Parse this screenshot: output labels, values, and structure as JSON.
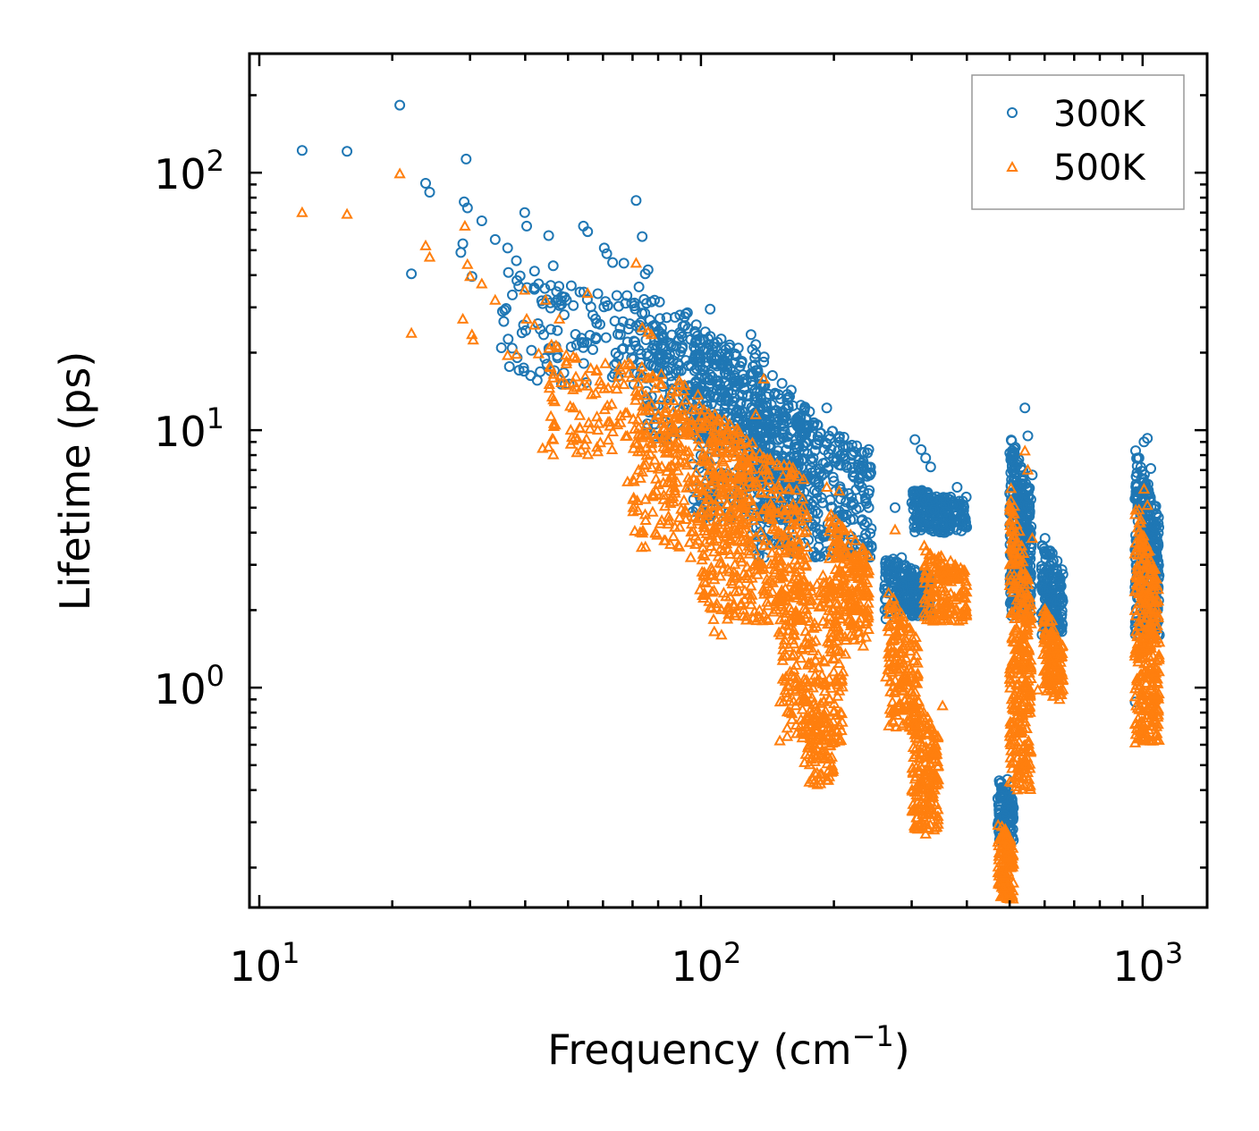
{
  "chart_data": {
    "type": "scatter",
    "title": "",
    "xlabel": "Frequency (cm",
    "xlabel_sup": "−1",
    "xlabel_tail": ")",
    "ylabel": "Lifetime (ps)",
    "xscale": "log",
    "yscale": "log",
    "xlim": [
      9.5,
      1400
    ],
    "ylim": [
      0.14,
      290
    ],
    "x_ticks": [
      {
        "base": "10",
        "exp": "1",
        "value": 10
      },
      {
        "base": "10",
        "exp": "2",
        "value": 100
      },
      {
        "base": "10",
        "exp": "3",
        "value": 1000
      }
    ],
    "y_ticks": [
      {
        "base": "10",
        "exp": "0",
        "value": 1
      },
      {
        "base": "10",
        "exp": "1",
        "value": 10
      },
      {
        "base": "10",
        "exp": "2",
        "value": 100
      }
    ],
    "legend_position": "top-right",
    "series": [
      {
        "name": "300K",
        "marker": "circle",
        "color": "#1f77b4",
        "points": [
          [
            12.5,
            122
          ],
          [
            15.8,
            121
          ],
          [
            20.8,
            183
          ],
          [
            22.1,
            40.5
          ],
          [
            23.8,
            91
          ],
          [
            24.3,
            84
          ],
          [
            29.4,
            113
          ],
          [
            29.1,
            77
          ],
          [
            29.6,
            73
          ],
          [
            28.9,
            53
          ],
          [
            28.6,
            49
          ],
          [
            30.3,
            39.5
          ],
          [
            31.9,
            65
          ],
          [
            34.2,
            55
          ],
          [
            36.5,
            51
          ],
          [
            38.2,
            45.5
          ],
          [
            37.4,
            33.5
          ],
          [
            39.9,
            70
          ],
          [
            40.3,
            62
          ],
          [
            42.0,
            41.5
          ],
          [
            42.9,
            37
          ],
          [
            43.8,
            31
          ],
          [
            45.2,
            57
          ],
          [
            45.7,
            36.5
          ],
          [
            46.3,
            43.5
          ],
          [
            47.1,
            34.5
          ],
          [
            47.8,
            30.5
          ],
          [
            49.6,
            32
          ],
          [
            51.4,
            30.5
          ],
          [
            54.2,
            62
          ],
          [
            55.4,
            59
          ],
          [
            56.9,
            28
          ],
          [
            58.1,
            26
          ],
          [
            60.4,
            51
          ],
          [
            61.2,
            48.5
          ],
          [
            63.1,
            44.8
          ],
          [
            65.7,
            23.5
          ],
          [
            66.9,
            44.5
          ],
          [
            68.2,
            22
          ],
          [
            71.3,
            78
          ],
          [
            72.4,
            36
          ],
          [
            73.6,
            56.5
          ],
          [
            74.8,
            40.5
          ],
          [
            75.9,
            42
          ],
          [
            77.2,
            31.5
          ],
          [
            78.5,
            32
          ],
          [
            80.1,
            24.3
          ],
          [
            82.5,
            21.2
          ],
          [
            85.1,
            21.8
          ],
          [
            87.3,
            19.7
          ],
          [
            89.6,
            28
          ],
          [
            92.4,
            28.3
          ],
          [
            94.8,
            22.5
          ],
          [
            97.1,
            19.6
          ],
          [
            99.5,
            22.4
          ],
          [
            101.8,
            20.5
          ],
          [
            104.9,
            29.5
          ],
          [
            107.2,
            21.7
          ],
          [
            111.3,
            17.8
          ],
          [
            115.6,
            16.5
          ],
          [
            119.3,
            18.2
          ],
          [
            124.5,
            15.3
          ],
          [
            129.8,
            23.5
          ],
          [
            133.1,
            21.5
          ],
          [
            138.7,
            18.4
          ],
          [
            145.2,
            16.3
          ],
          [
            152.6,
            15.2
          ],
          [
            160.1,
            14.3
          ],
          [
            168.4,
            12.5
          ],
          [
            176.2,
            11.8
          ],
          [
            183.5,
            10.5
          ],
          [
            192.7,
            12.2
          ],
          [
            198.3,
            9.9
          ],
          [
            205.6,
            9.3
          ],
          [
            212.4,
            8.7
          ],
          [
            220.1,
            8.1
          ],
          [
            227.3,
            7.2
          ],
          [
            234.6,
            3.8
          ],
          [
            238.5,
            3.3
          ],
          [
            262.3,
            1.85
          ],
          [
            275.1,
            5.0
          ],
          [
            284.7,
            3.2
          ],
          [
            296.5,
            2.7
          ],
          [
            305.1,
            9.2
          ],
          [
            315.2,
            8.4
          ],
          [
            322.7,
            7.8
          ],
          [
            331.2,
            7.2
          ],
          [
            336.8,
            4.9
          ],
          [
            352.4,
            4.3
          ],
          [
            367.5,
            5.5
          ],
          [
            380.2,
            6.0
          ],
          [
            391.3,
            5.3
          ],
          [
            398.7,
            5.5
          ],
          [
            478.2,
            0.38
          ],
          [
            486.5,
            0.32
          ],
          [
            494.1,
            0.44
          ],
          [
            505.2,
            1.9
          ],
          [
            514.6,
            2.5
          ],
          [
            527.3,
            4.6
          ],
          [
            541.5,
            12.2
          ],
          [
            549.8,
            9.5
          ],
          [
            562.4,
            6.7
          ],
          [
            579.1,
            1.88
          ],
          [
            601.2,
            3.8
          ],
          [
            617.5,
            3.4
          ],
          [
            636.8,
            2.2
          ],
          [
            648.3,
            1.7
          ],
          [
            962.1,
            0.88
          ],
          [
            968.4,
            5.4
          ],
          [
            981.6,
            7.8
          ],
          [
            994.3,
            6.5
          ],
          [
            1007.5,
            9.0
          ],
          [
            1025.2,
            9.3
          ],
          [
            1043.6,
            7.1
          ],
          [
            1062.7,
            4.2
          ],
          [
            1078.1,
            2.0
          ],
          [
            1091.3,
            1.6
          ]
        ],
        "clusters": [
          {
            "x": [
              35,
              100
            ],
            "y": [
              15,
              42
            ],
            "n": 170
          },
          {
            "x": [
              75,
              140
            ],
            "y": [
              9,
              30
            ],
            "n": 260
          },
          {
            "x": [
              95,
              175
            ],
            "y": [
              4.5,
              22
            ],
            "n": 400
          },
          {
            "x": [
              130,
              245
            ],
            "y": [
              3.2,
              14
            ],
            "n": 380
          },
          {
            "x": [
              260,
              330
            ],
            "y": [
              1.9,
              3.3
            ],
            "n": 220
          },
          {
            "x": [
              300,
              400
            ],
            "y": [
              4.0,
              6.0
            ],
            "n": 200
          },
          {
            "x": [
              470,
              510
            ],
            "y": [
              0.25,
              0.45
            ],
            "n": 120
          },
          {
            "x": [
              500,
              560
            ],
            "y": [
              2.0,
              10.0
            ],
            "n": 300
          },
          {
            "x": [
              590,
              660
            ],
            "y": [
              1.6,
              3.9
            ],
            "n": 160
          },
          {
            "x": [
              960,
              1090
            ],
            "y": [
              1.6,
              8.5
            ],
            "n": 300
          }
        ]
      },
      {
        "name": "500K",
        "marker": "triangle",
        "color": "#ff7f0e",
        "points": [
          [
            12.5,
            70
          ],
          [
            15.8,
            69
          ],
          [
            20.8,
            99
          ],
          [
            22.1,
            23.8
          ],
          [
            23.8,
            52
          ],
          [
            24.3,
            47
          ],
          [
            28.9,
            27
          ],
          [
            29.2,
            62
          ],
          [
            29.6,
            44
          ],
          [
            30.0,
            39.5
          ],
          [
            30.3,
            23.5
          ],
          [
            30.5,
            22.4
          ],
          [
            31.9,
            37
          ],
          [
            34.2,
            32
          ],
          [
            36.5,
            19.5
          ],
          [
            38.2,
            19.7
          ],
          [
            39.9,
            35
          ],
          [
            40.3,
            27
          ],
          [
            42.0,
            25.6
          ],
          [
            42.9,
            19.8
          ],
          [
            43.8,
            8.5
          ],
          [
            44.5,
            32
          ],
          [
            45.7,
            17.5
          ],
          [
            47.8,
            27
          ],
          [
            49.6,
            18.5
          ],
          [
            51.4,
            12.2
          ],
          [
            53.2,
            11.4
          ],
          [
            55.4,
            34
          ],
          [
            58.1,
            17.1
          ],
          [
            60.4,
            14.5
          ],
          [
            62.8,
            12.6
          ],
          [
            65.7,
            10.7
          ],
          [
            68.2,
            6.3
          ],
          [
            71.3,
            44.5
          ],
          [
            73.6,
            25
          ],
          [
            75.9,
            24
          ],
          [
            77.2,
            23.5
          ],
          [
            80.1,
            11.5
          ],
          [
            82.5,
            9.3
          ],
          [
            85.1,
            5.8
          ],
          [
            87.3,
            4.2
          ],
          [
            89.6,
            9.8
          ],
          [
            92.4,
            4.5
          ],
          [
            94.8,
            3.2
          ],
          [
            97.1,
            3.6
          ],
          [
            99.5,
            2.4
          ],
          [
            101.8,
            2.8
          ],
          [
            104.9,
            2.05
          ],
          [
            107.2,
            1.65
          ],
          [
            111.3,
            1.6
          ],
          [
            115.6,
            2.0
          ],
          [
            119.3,
            1.9
          ],
          [
            124.5,
            5.8
          ],
          [
            129.8,
            2.2
          ],
          [
            133.1,
            11.5
          ],
          [
            138.7,
            15.8
          ],
          [
            145.2,
            4.5
          ],
          [
            152.6,
            2.2
          ],
          [
            160.1,
            1.8
          ],
          [
            168.4,
            1.3
          ],
          [
            176.2,
            0.55
          ],
          [
            179.1,
            0.44
          ],
          [
            183.5,
            0.42
          ],
          [
            186.2,
            0.46
          ],
          [
            192.7,
            6.0
          ],
          [
            198.3,
            2.5
          ],
          [
            205.6,
            5.8
          ],
          [
            212.4,
            1.35
          ],
          [
            220.1,
            1.8
          ],
          [
            227.3,
            2.7
          ],
          [
            233.1,
            1.45
          ],
          [
            238.5,
            1.95
          ],
          [
            262.3,
            1.1
          ],
          [
            275.1,
            4.1
          ],
          [
            284.7,
            1.0
          ],
          [
            296.5,
            0.9
          ],
          [
            305.1,
            0.72
          ],
          [
            315.2,
            0.42
          ],
          [
            322.7,
            0.27
          ],
          [
            331.2,
            0.38
          ],
          [
            336.8,
            0.62
          ],
          [
            352.4,
            0.85
          ],
          [
            367.5,
            3.1
          ],
          [
            380.2,
            2.7
          ],
          [
            391.3,
            2.4
          ],
          [
            398.7,
            1.9
          ],
          [
            478.2,
            0.19
          ],
          [
            486.5,
            0.155
          ],
          [
            494.1,
            0.22
          ],
          [
            505.2,
            0.9
          ],
          [
            514.6,
            1.5
          ],
          [
            527.3,
            1.4
          ],
          [
            541.5,
            8.3
          ],
          [
            549.8,
            7.0
          ],
          [
            562.4,
            3.8
          ],
          [
            579.1,
            0.98
          ],
          [
            601.2,
            1.9
          ],
          [
            617.5,
            1.6
          ],
          [
            636.8,
            1.1
          ],
          [
            648.3,
            0.9
          ],
          [
            962.1,
            0.61
          ],
          [
            968.4,
            2.4
          ],
          [
            981.6,
            4.9
          ],
          [
            994.3,
            3.5
          ],
          [
            1007.5,
            5.9
          ],
          [
            1025.2,
            5.1
          ],
          [
            1043.6,
            2.0
          ],
          [
            1062.7,
            0.95
          ],
          [
            1078.1,
            1.05
          ],
          [
            1091.3,
            1.5
          ]
        ],
        "clusters": [
          {
            "x": [
              45,
              100
            ],
            "y": [
              8,
              22
            ],
            "n": 160
          },
          {
            "x": [
              70,
              130
            ],
            "y": [
              3.5,
              14
            ],
            "n": 260
          },
          {
            "x": [
              100,
              175
            ],
            "y": [
              1.8,
              13
            ],
            "n": 420
          },
          {
            "x": [
              150,
              210
            ],
            "y": [
              0.6,
              4.5
            ],
            "n": 260
          },
          {
            "x": [
              170,
              200
            ],
            "y": [
              0.42,
              1.0
            ],
            "n": 80
          },
          {
            "x": [
              195,
              240
            ],
            "y": [
              1.5,
              5.0
            ],
            "n": 200
          },
          {
            "x": [
              265,
              310
            ],
            "y": [
              0.7,
              2.4
            ],
            "n": 160
          },
          {
            "x": [
              300,
              345
            ],
            "y": [
              0.28,
              1.0
            ],
            "n": 200
          },
          {
            "x": [
              320,
              400
            ],
            "y": [
              1.8,
              3.6
            ],
            "n": 160
          },
          {
            "x": [
              470,
              510
            ],
            "y": [
              0.15,
              0.32
            ],
            "n": 120
          },
          {
            "x": [
              500,
              560
            ],
            "y": [
              0.4,
              6.5
            ],
            "n": 320
          },
          {
            "x": [
              595,
              660
            ],
            "y": [
              0.9,
              2.1
            ],
            "n": 140
          },
          {
            "x": [
              960,
              1090
            ],
            "y": [
              0.62,
              5.5
            ],
            "n": 320
          }
        ]
      }
    ]
  }
}
